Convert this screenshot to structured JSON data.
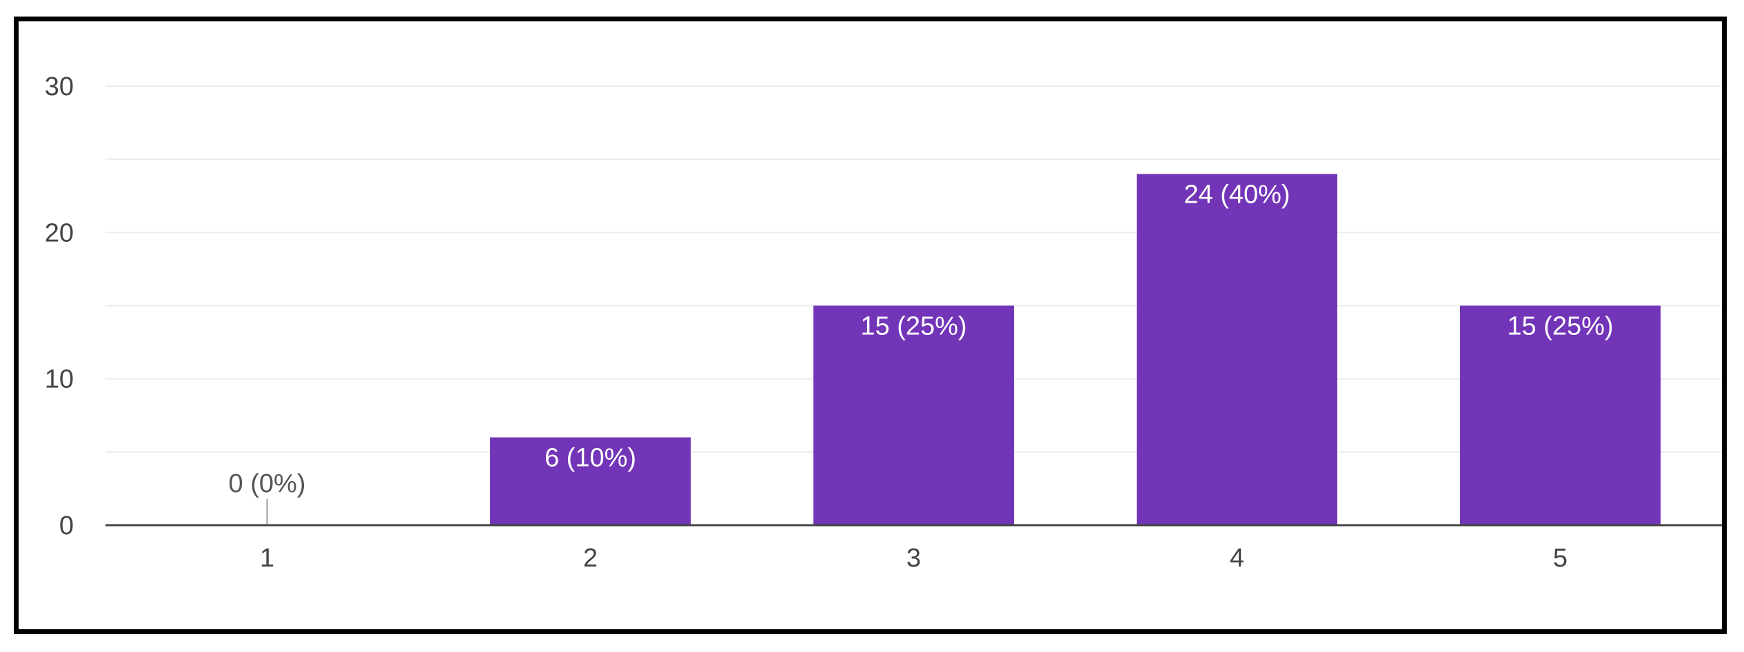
{
  "chart_data": {
    "type": "bar",
    "title": "",
    "xlabel": "",
    "ylabel": "",
    "categories": [
      "1",
      "2",
      "3",
      "4",
      "5"
    ],
    "values": [
      0,
      6,
      15,
      24,
      15
    ],
    "data_labels": [
      "0 (0%)",
      "6 (10%)",
      "15 (25%)",
      "24 (40%)",
      "15 (25%)"
    ],
    "ylim": [
      0,
      30
    ],
    "yticks": [
      0,
      10,
      20,
      30
    ],
    "minor_gridlines": [
      5,
      15,
      25
    ],
    "grid": true,
    "legend": "none",
    "colors": {
      "bar": "#7335B8",
      "bar_label_inside": "#ffffff",
      "bar_label_outside": "#555555",
      "gridline": "#ececec",
      "axis": "#444444",
      "tick_text": "#444444",
      "frame": "#000000"
    }
  }
}
